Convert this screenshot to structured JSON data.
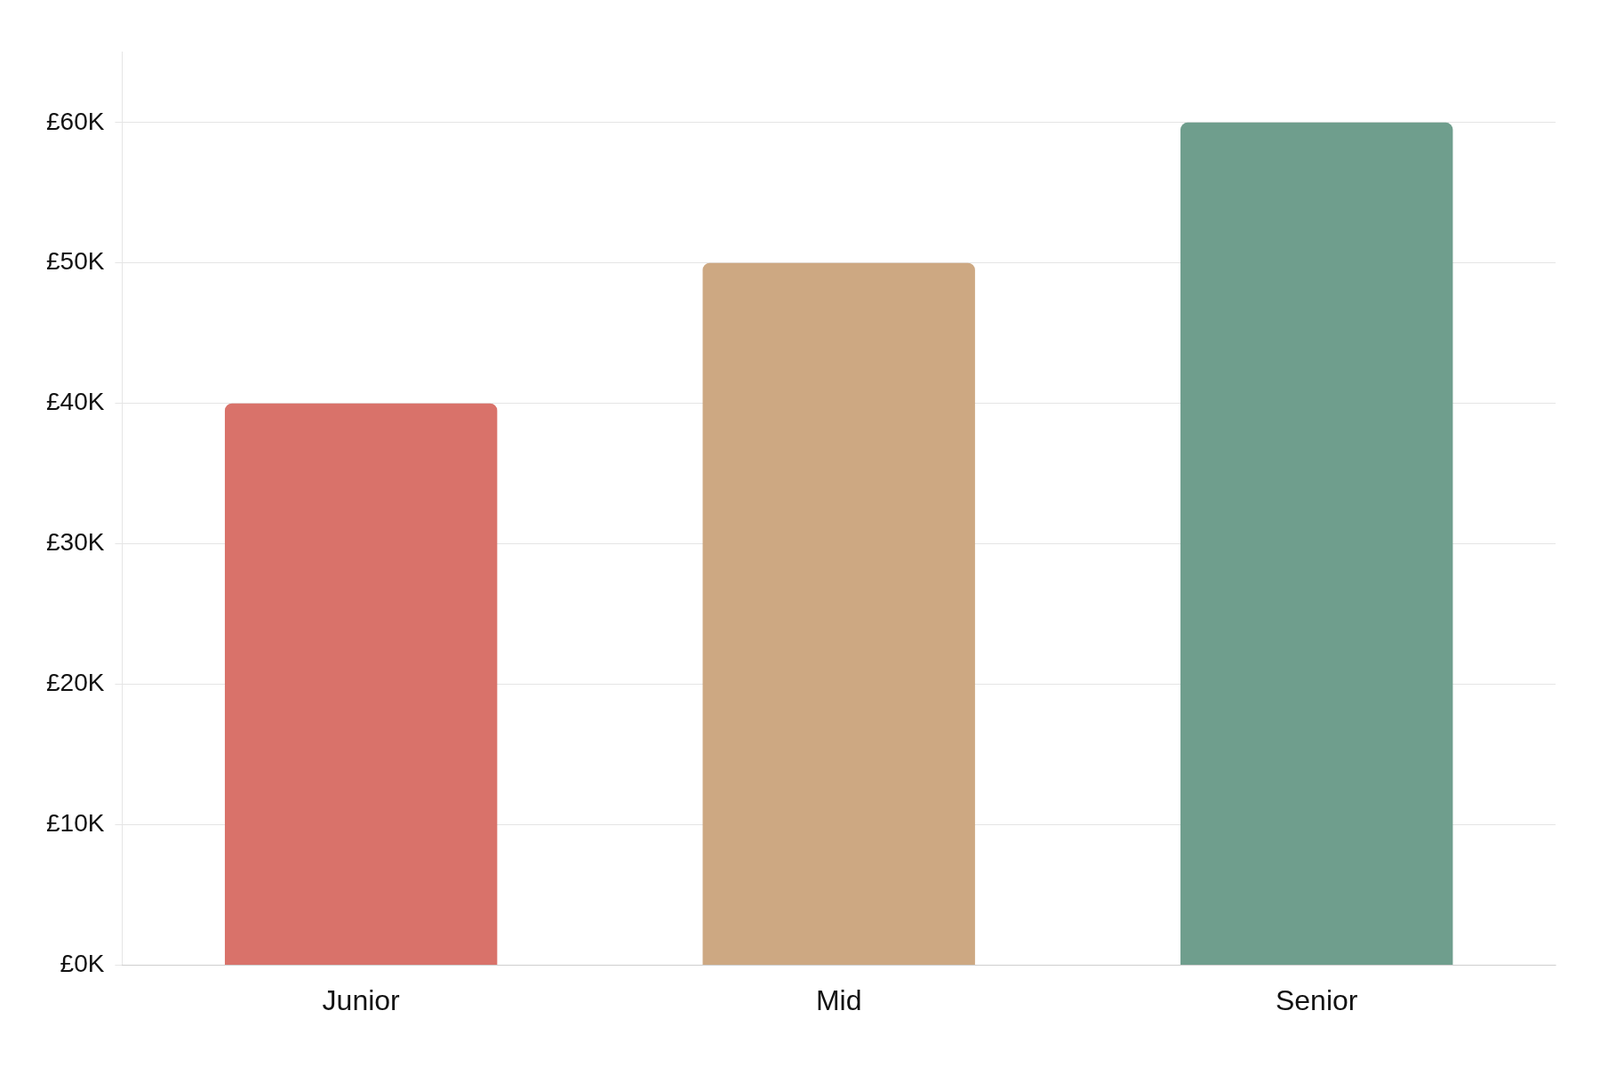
{
  "chart_data": {
    "type": "bar",
    "categories": [
      "Junior",
      "Mid",
      "Senior"
    ],
    "values": [
      40000,
      50000,
      60000
    ],
    "colors": [
      "#d9726a",
      "#cda882",
      "#6f9e8d"
    ],
    "ylim": [
      0,
      65000
    ],
    "yticks": [
      {
        "value": 0,
        "label": "£0K"
      },
      {
        "value": 10000,
        "label": "£10K"
      },
      {
        "value": 20000,
        "label": "£20K"
      },
      {
        "value": 30000,
        "label": "£30K"
      },
      {
        "value": 40000,
        "label": "£40K"
      },
      {
        "value": 50000,
        "label": "£50K"
      },
      {
        "value": 60000,
        "label": "£60K"
      }
    ],
    "grid": true
  }
}
